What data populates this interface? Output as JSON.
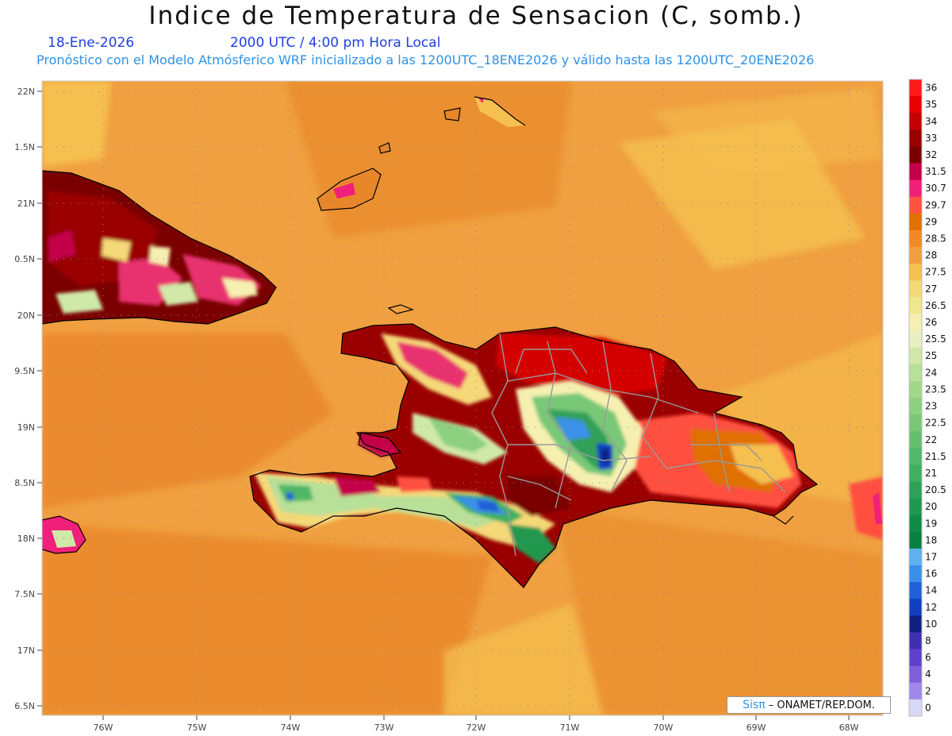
{
  "header": {
    "title": "Indice de Temperatura de Sensacion (C, somb.)",
    "date": "18-Ene-2026",
    "time": "2000 UTC / 4:00 pm Hora Local",
    "forecast": "Pronóstico con el Modelo Atmósferico WRF inicializado a las 1200UTC_18ENE2026 y válido hasta las  1200UTC_20ENE2026"
  },
  "axes": {
    "lat_labels": [
      "22N",
      "1.5N",
      "21N",
      "0.5N",
      "20N",
      "9.5N",
      "19N",
      "8.5N",
      "18N",
      "7.5N",
      "17N",
      "6.5N"
    ],
    "lon_labels": [
      "76W",
      "75W",
      "74W",
      "73W",
      "72W",
      "71W",
      "70W",
      "69W",
      "68W"
    ]
  },
  "colorbar": {
    "levels": [
      "36",
      "35",
      "34",
      "33",
      "32",
      "31.5",
      "30.7",
      "29.7",
      "29",
      "28.5",
      "28",
      "27.5",
      "27",
      "26.5",
      "26",
      "25.5",
      "25",
      "24",
      "23.5",
      "23",
      "22.5",
      "22",
      "21.5",
      "21",
      "20.5",
      "20",
      "19",
      "18",
      "17",
      "16",
      "14",
      "12",
      "10",
      "8",
      "6",
      "4",
      "2",
      "0"
    ],
    "colors": [
      "#ff1a1a",
      "#e60000",
      "#c40000",
      "#9a0000",
      "#7a0000",
      "#c4004a",
      "#f0207a",
      "#ff5040",
      "#e07000",
      "#f08a28",
      "#f0a040",
      "#f5c050",
      "#f5d878",
      "#f0e890",
      "#f5f0b0",
      "#e8f0c0",
      "#d0e8a8",
      "#b8e098",
      "#a0d888",
      "#8cd080",
      "#78c878",
      "#64c070",
      "#50b868",
      "#40b060",
      "#30a058",
      "#209850",
      "#108c48",
      "#0a8040",
      "#60b0f0",
      "#3a90e8",
      "#2060d8",
      "#1040c0",
      "#102080",
      "#4030b0",
      "#6040c8",
      "#8060d8",
      "#a088e8",
      "#d8d8f8"
    ]
  },
  "credit": {
    "sis": "Sisπ",
    "org": "– ONAMET/REP.DOM."
  }
}
